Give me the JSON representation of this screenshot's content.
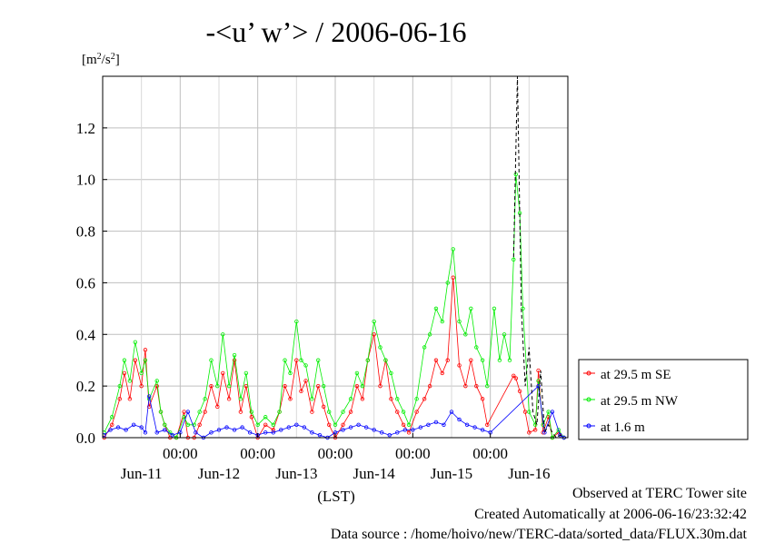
{
  "chart_data": {
    "type": "line",
    "title": "-<u’ w’> / 2006-06-16",
    "ylabel_base": "[m",
    "ylabel_sup1": "2",
    "ylabel_mid": "/s",
    "ylabel_sup2": "2",
    "ylabel_end": "]",
    "xlabel": "(LST)",
    "xlim": [
      0,
      6.0
    ],
    "ylim": [
      0,
      1.4
    ],
    "yticks": [
      {
        "value": 0.0,
        "label": "0.0"
      },
      {
        "value": 0.2,
        "label": "0.2"
      },
      {
        "value": 0.4,
        "label": "0.4"
      },
      {
        "value": 0.6,
        "label": "0.6"
      },
      {
        "value": 0.8,
        "label": "0.8"
      },
      {
        "value": 1.0,
        "label": "1.0"
      },
      {
        "value": 1.2,
        "label": "1.2"
      }
    ],
    "xticks_time": [
      {
        "value": 1,
        "label": "00:00"
      },
      {
        "value": 2,
        "label": "00:00"
      },
      {
        "value": 3,
        "label": "00:00"
      },
      {
        "value": 4,
        "label": "00:00"
      },
      {
        "value": 5,
        "label": "00:00"
      }
    ],
    "xticks_date": [
      {
        "value": 0.5,
        "label": "Jun-11"
      },
      {
        "value": 1.5,
        "label": "Jun-12"
      },
      {
        "value": 2.5,
        "label": "Jun-13"
      },
      {
        "value": 3.5,
        "label": "Jun-14"
      },
      {
        "value": 4.5,
        "label": "Jun-15"
      },
      {
        "value": 5.5,
        "label": "Jun-16"
      }
    ],
    "grid": true,
    "legend_position": "right",
    "series": [
      {
        "name": "at 29.5 m SE",
        "color": "#ff0000",
        "x": [
          0.02,
          0.12,
          0.22,
          0.28,
          0.35,
          0.42,
          0.5,
          0.55,
          0.6,
          0.7,
          0.75,
          0.8,
          0.87,
          0.95,
          1.05,
          1.1,
          1.18,
          1.25,
          1.32,
          1.4,
          1.48,
          1.55,
          1.63,
          1.7,
          1.78,
          1.85,
          1.92,
          2.0,
          2.1,
          2.2,
          2.28,
          2.35,
          2.42,
          2.5,
          2.56,
          2.62,
          2.7,
          2.78,
          2.85,
          2.92,
          3.0,
          3.1,
          3.2,
          3.28,
          3.35,
          3.42,
          3.5,
          3.58,
          3.65,
          3.72,
          3.8,
          3.88,
          3.95,
          4.05,
          4.15,
          4.22,
          4.3,
          4.38,
          4.45,
          4.52,
          4.6,
          4.68,
          4.75,
          4.82,
          4.9,
          4.96,
          5.3,
          5.33,
          5.38,
          5.45,
          5.5,
          5.58,
          5.62,
          5.68,
          5.75,
          5.8,
          5.88,
          5.95
        ],
        "y": [
          0.0,
          0.05,
          0.15,
          0.25,
          0.15,
          0.3,
          0.2,
          0.34,
          0.12,
          0.2,
          0.1,
          0.05,
          0.0,
          0.0,
          0.1,
          0.0,
          0.0,
          0.05,
          0.1,
          0.2,
          0.12,
          0.25,
          0.15,
          0.3,
          0.1,
          0.2,
          0.08,
          0.0,
          0.05,
          0.03,
          0.1,
          0.2,
          0.15,
          0.3,
          0.18,
          0.22,
          0.1,
          0.2,
          0.12,
          0.05,
          0.0,
          0.05,
          0.1,
          0.2,
          0.15,
          0.3,
          0.4,
          0.2,
          0.3,
          0.15,
          0.1,
          0.05,
          0.02,
          0.1,
          0.15,
          0.2,
          0.3,
          0.25,
          0.3,
          0.62,
          0.28,
          0.2,
          0.3,
          0.2,
          0.15,
          0.05,
          0.24,
          0.23,
          0.18,
          0.1,
          0.02,
          0.03,
          0.26,
          0.02,
          0.08,
          0.0,
          0.02,
          0.0
        ]
      },
      {
        "name": "at 29.5 m NW",
        "color": "#00ee00",
        "x": [
          0.02,
          0.12,
          0.22,
          0.28,
          0.35,
          0.42,
          0.5,
          0.55,
          0.6,
          0.7,
          0.75,
          0.8,
          0.87,
          0.95,
          1.05,
          1.1,
          1.18,
          1.25,
          1.32,
          1.4,
          1.48,
          1.55,
          1.63,
          1.7,
          1.78,
          1.85,
          1.92,
          2.0,
          2.1,
          2.2,
          2.28,
          2.35,
          2.42,
          2.5,
          2.56,
          2.62,
          2.7,
          2.78,
          2.85,
          2.92,
          3.0,
          3.1,
          3.2,
          3.28,
          3.35,
          3.42,
          3.5,
          3.58,
          3.65,
          3.72,
          3.8,
          3.88,
          3.95,
          4.05,
          4.15,
          4.22,
          4.3,
          4.38,
          4.45,
          4.52,
          4.6,
          4.68,
          4.75,
          4.82,
          4.9,
          4.96,
          5.05,
          5.12,
          5.18,
          5.25,
          5.3,
          5.33,
          5.38,
          5.42,
          5.5,
          5.58,
          5.62,
          5.68,
          5.75,
          5.8,
          5.88,
          5.95
        ],
        "y": [
          0.02,
          0.08,
          0.2,
          0.3,
          0.22,
          0.37,
          0.25,
          0.3,
          0.15,
          0.22,
          0.1,
          0.05,
          0.02,
          0.0,
          0.08,
          0.05,
          0.05,
          0.1,
          0.15,
          0.3,
          0.2,
          0.4,
          0.2,
          0.32,
          0.15,
          0.25,
          0.1,
          0.05,
          0.08,
          0.05,
          0.1,
          0.3,
          0.25,
          0.45,
          0.3,
          0.28,
          0.15,
          0.3,
          0.2,
          0.1,
          0.05,
          0.1,
          0.15,
          0.25,
          0.2,
          0.3,
          0.45,
          0.35,
          0.3,
          0.25,
          0.15,
          0.1,
          0.05,
          0.15,
          0.35,
          0.4,
          0.5,
          0.45,
          0.6,
          0.73,
          0.45,
          0.4,
          0.5,
          0.35,
          0.3,
          0.2,
          0.5,
          0.3,
          0.4,
          0.3,
          0.69,
          1.02,
          0.87,
          0.5,
          0.1,
          0.05,
          0.22,
          0.05,
          0.1,
          0.0,
          0.03,
          0.0
        ]
      },
      {
        "name": "at 1.6 m",
        "color": "#0000ff",
        "x": [
          0.02,
          0.1,
          0.2,
          0.3,
          0.4,
          0.5,
          0.55,
          0.6,
          0.7,
          0.8,
          0.9,
          1.0,
          1.1,
          1.2,
          1.3,
          1.4,
          1.5,
          1.6,
          1.7,
          1.8,
          1.9,
          2.0,
          2.1,
          2.2,
          2.3,
          2.4,
          2.5,
          2.6,
          2.7,
          2.8,
          2.9,
          3.0,
          3.1,
          3.2,
          3.3,
          3.4,
          3.5,
          3.6,
          3.7,
          3.8,
          3.9,
          4.0,
          4.1,
          4.2,
          4.3,
          4.4,
          4.5,
          4.6,
          4.7,
          4.8,
          4.9,
          5.0,
          5.62,
          5.7,
          5.8,
          5.9,
          5.95
        ],
        "y": [
          0.01,
          0.03,
          0.04,
          0.03,
          0.05,
          0.04,
          0.02,
          0.16,
          0.02,
          0.03,
          0.01,
          0.02,
          0.1,
          0.02,
          0.0,
          0.02,
          0.03,
          0.04,
          0.03,
          0.04,
          0.02,
          0.01,
          0.02,
          0.02,
          0.03,
          0.04,
          0.05,
          0.04,
          0.02,
          0.01,
          0.0,
          0.02,
          0.03,
          0.04,
          0.05,
          0.04,
          0.03,
          0.02,
          0.01,
          0.02,
          0.03,
          0.03,
          0.04,
          0.05,
          0.06,
          0.05,
          0.1,
          0.07,
          0.05,
          0.04,
          0.03,
          0.02,
          0.2,
          0.02,
          0.1,
          0.01,
          0.0
        ]
      },
      {
        "name": "",
        "color": "#000000",
        "x": [
          5.3,
          5.35,
          5.4,
          5.45,
          5.5,
          5.55,
          5.6,
          5.65,
          5.7,
          5.75,
          5.8,
          5.85,
          5.9,
          5.95
        ],
        "y": [
          0.7,
          1.4,
          0.5,
          0.2,
          0.35,
          0.1,
          0.05,
          0.26,
          0.02,
          0.05,
          0.02,
          0.0,
          0.01,
          0.0
        ]
      }
    ]
  },
  "footer": {
    "observed": "Observed at TERC Tower site",
    "created": "Created Automatically at 2006-06-16/23:32:42",
    "source": "Data source : /home/hoivo/new/TERC-data/sorted_data/FLUX.30m.dat"
  }
}
